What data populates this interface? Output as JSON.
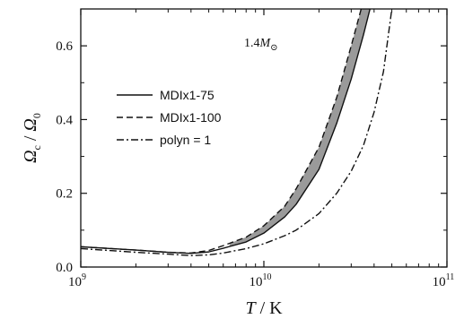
{
  "chart_data": {
    "type": "line",
    "x_scale": "log",
    "x_range": [
      1000000000,
      100000000000
    ],
    "ylim": [
      0.0,
      0.7
    ],
    "x_ticks": [
      {
        "value": 1000000000,
        "base": "10",
        "exp": "9"
      },
      {
        "value": 10000000000,
        "base": "10",
        "exp": "10"
      },
      {
        "value": 100000000000,
        "base": "10",
        "exp": "11"
      }
    ],
    "y_ticks": [
      {
        "value": 0.0,
        "label": "0.0"
      },
      {
        "value": 0.2,
        "label": "0.2"
      },
      {
        "value": 0.4,
        "label": "0.4"
      },
      {
        "value": 0.6,
        "label": "0.6"
      }
    ],
    "xlabel": {
      "italic": "T",
      "rest": " / K"
    },
    "ylabel": {
      "num": "Ω",
      "num_sub": "c",
      "sep": " / ",
      "den": "Ω",
      "den_sub": "0"
    },
    "annotation": {
      "text": "1.4",
      "symbol": "M",
      "subscript": "⊙"
    },
    "legend_position": "center-left",
    "shaded_band": {
      "between": [
        "MDIx1-75",
        "MDIx1-100"
      ],
      "color": "#9a9a9a"
    },
    "series": [
      {
        "name": "MDIx1-75",
        "dash": "solid",
        "x": [
          1000000000,
          2000000000,
          3000000000,
          4000000000,
          5000000000,
          6000000000,
          8000000000,
          10000000000,
          13000000000,
          15000000000,
          20000000000,
          25000000000,
          30000000000,
          35000000000,
          38000000000
        ],
        "y": [
          0.055,
          0.046,
          0.04,
          0.037,
          0.041,
          0.051,
          0.068,
          0.092,
          0.136,
          0.17,
          0.265,
          0.39,
          0.51,
          0.63,
          0.7
        ]
      },
      {
        "name": "MDIx1-100",
        "dash": "dashed",
        "x": [
          1000000000,
          2000000000,
          3000000000,
          4000000000,
          5000000000,
          6000000000,
          8000000000,
          10000000000,
          13000000000,
          15000000000,
          20000000000,
          25000000000,
          30000000000,
          34000000000
        ],
        "y": [
          0.055,
          0.046,
          0.04,
          0.038,
          0.045,
          0.058,
          0.081,
          0.112,
          0.165,
          0.212,
          0.325,
          0.46,
          0.6,
          0.7
        ]
      },
      {
        "name": "polyn = 1",
        "dash": "dashdot",
        "x": [
          1000000000,
          2000000000,
          3000000000,
          4000000000,
          5000000000,
          6000000000,
          8000000000,
          10000000000,
          13000000000,
          15000000000,
          20000000000,
          25000000000,
          30000000000,
          35000000000,
          40000000000,
          45000000000,
          50000000000
        ],
        "y": [
          0.05,
          0.04,
          0.035,
          0.031,
          0.033,
          0.038,
          0.05,
          0.063,
          0.085,
          0.1,
          0.145,
          0.2,
          0.26,
          0.33,
          0.42,
          0.53,
          0.7
        ]
      }
    ]
  }
}
